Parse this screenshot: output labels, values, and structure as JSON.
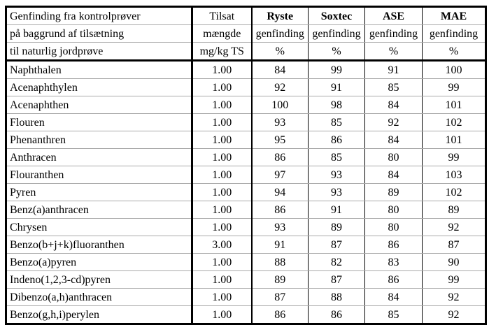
{
  "table": {
    "header": {
      "col1_lines": [
        "Genfinding fra kontrolprøver",
        "på baggrund af tilsætning",
        "til naturlig jordprøve"
      ],
      "col2_lines": [
        "Tilsat",
        "mængde",
        "mg/kg TS"
      ],
      "methods": [
        {
          "key": "ryste",
          "name": "Ryste",
          "sub": "genfinding",
          "unit": "%"
        },
        {
          "key": "soxtec",
          "name": "Soxtec",
          "sub": "genfinding",
          "unit": "%"
        },
        {
          "key": "ase",
          "name": "ASE",
          "sub": "genfinding",
          "unit": "%"
        },
        {
          "key": "mae",
          "name": "MAE",
          "sub": "genfinding",
          "unit": "%"
        }
      ]
    },
    "rows": [
      {
        "compound": "Naphthalen",
        "tilsat": "1.00",
        "ryste": "84",
        "soxtec": "99",
        "ase": "91",
        "mae": "100"
      },
      {
        "compound": "Acenaphthylen",
        "tilsat": "1.00",
        "ryste": "92",
        "soxtec": "91",
        "ase": "85",
        "mae": "99"
      },
      {
        "compound": "Acenaphthen",
        "tilsat": "1.00",
        "ryste": "100",
        "soxtec": "98",
        "ase": "84",
        "mae": "101"
      },
      {
        "compound": "Flouren",
        "tilsat": "1.00",
        "ryste": "93",
        "soxtec": "85",
        "ase": "92",
        "mae": "102"
      },
      {
        "compound": "Phenanthren",
        "tilsat": "1.00",
        "ryste": "95",
        "soxtec": "86",
        "ase": "84",
        "mae": "101"
      },
      {
        "compound": "Anthracen",
        "tilsat": "1.00",
        "ryste": "86",
        "soxtec": "85",
        "ase": "80",
        "mae": "99"
      },
      {
        "compound": "Flouranthen",
        "tilsat": "1.00",
        "ryste": "97",
        "soxtec": "93",
        "ase": "84",
        "mae": "103"
      },
      {
        "compound": "Pyren",
        "tilsat": "1.00",
        "ryste": "94",
        "soxtec": "93",
        "ase": "89",
        "mae": "102"
      },
      {
        "compound": "Benz(a)anthracen",
        "tilsat": "1.00",
        "ryste": "86",
        "soxtec": "91",
        "ase": "80",
        "mae": "89"
      },
      {
        "compound": "Chrysen",
        "tilsat": "1.00",
        "ryste": "93",
        "soxtec": "89",
        "ase": "80",
        "mae": "92"
      },
      {
        "compound": "Benzo(b+j+k)fluoranthen",
        "tilsat": "3.00",
        "ryste": "91",
        "soxtec": "87",
        "ase": "86",
        "mae": "87"
      },
      {
        "compound": "Benzo(a)pyren",
        "tilsat": "1.00",
        "ryste": "88",
        "soxtec": "82",
        "ase": "83",
        "mae": "90"
      },
      {
        "compound": "Indeno(1,2,3-cd)pyren",
        "tilsat": "1.00",
        "ryste": "89",
        "soxtec": "87",
        "ase": "86",
        "mae": "99"
      },
      {
        "compound": "Dibenzo(a,h)anthracen",
        "tilsat": "1.00",
        "ryste": "87",
        "soxtec": "88",
        "ase": "84",
        "mae": "92"
      },
      {
        "compound": "Benzo(g,h,i)perylen",
        "tilsat": "1.00",
        "ryste": "86",
        "soxtec": "86",
        "ase": "85",
        "mae": "92"
      }
    ]
  },
  "colors": {
    "border": "#000000",
    "row_separator": "#a9a9a9",
    "text": "#000000",
    "background": "#ffffff"
  }
}
